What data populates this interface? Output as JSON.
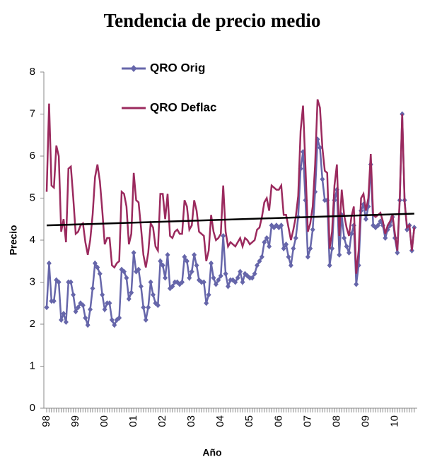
{
  "chart_data": {
    "type": "line",
    "title": "Tendencia de precio medio",
    "x_label": "Año",
    "y_label": "Precio",
    "categories": [
      "98",
      null,
      null,
      null,
      null,
      null,
      null,
      null,
      null,
      null,
      null,
      null,
      "99",
      null,
      null,
      null,
      null,
      null,
      null,
      null,
      null,
      null,
      null,
      null,
      "00",
      null,
      null,
      null,
      null,
      null,
      null,
      null,
      null,
      null,
      null,
      null,
      "01",
      null,
      null,
      null,
      null,
      null,
      null,
      null,
      null,
      null,
      null,
      null,
      "02",
      null,
      null,
      null,
      null,
      null,
      null,
      null,
      null,
      null,
      null,
      null,
      "03",
      null,
      null,
      null,
      null,
      null,
      null,
      null,
      null,
      null,
      null,
      null,
      "04",
      null,
      null,
      null,
      null,
      null,
      null,
      null,
      null,
      null,
      null,
      null,
      "05",
      null,
      null,
      null,
      null,
      null,
      null,
      null,
      null,
      null,
      null,
      null,
      "06",
      null,
      null,
      null,
      null,
      null,
      null,
      null,
      null,
      null,
      null,
      null,
      "07",
      null,
      null,
      null,
      null,
      null,
      null,
      null,
      null,
      null,
      null,
      null,
      "08",
      null,
      null,
      null,
      null,
      null,
      null,
      null,
      null,
      null,
      null,
      null,
      "09",
      null,
      null,
      null,
      null,
      null,
      null,
      null,
      null,
      null,
      null,
      null,
      "10",
      null,
      null,
      null,
      null,
      null,
      null,
      null,
      null
    ],
    "series": [
      {
        "name": "QRO Orig",
        "color": "#6666aa",
        "marker": "diamond",
        "values": [
          2.4,
          3.45,
          2.55,
          2.55,
          3.05,
          3.0,
          2.1,
          2.25,
          2.05,
          3.0,
          3.0,
          2.7,
          2.3,
          2.4,
          2.5,
          2.45,
          2.15,
          1.98,
          2.35,
          2.85,
          3.45,
          3.35,
          3.2,
          2.7,
          2.35,
          2.5,
          2.5,
          2.1,
          1.98,
          2.1,
          2.15,
          3.3,
          3.25,
          3.1,
          2.6,
          2.75,
          3.7,
          3.25,
          3.3,
          2.9,
          2.4,
          2.1,
          2.4,
          3.0,
          2.7,
          2.5,
          2.45,
          3.5,
          3.4,
          3.1,
          3.65,
          2.85,
          2.9,
          3.0,
          3.0,
          2.95,
          3.0,
          3.6,
          3.5,
          3.1,
          3.25,
          3.65,
          3.4,
          3.05,
          3.0,
          3.0,
          2.5,
          2.7,
          3.45,
          3.1,
          2.95,
          3.05,
          3.15,
          4.1,
          3.2,
          2.9,
          3.05,
          3.05,
          3.0,
          3.1,
          3.25,
          3.0,
          3.2,
          3.15,
          3.1,
          3.1,
          3.2,
          3.4,
          3.5,
          3.6,
          3.95,
          4.05,
          3.85,
          4.35,
          4.3,
          4.35,
          4.3,
          4.35,
          3.8,
          3.9,
          3.6,
          3.4,
          3.8,
          4.05,
          4.55,
          5.7,
          6.1,
          4.95,
          3.6,
          3.8,
          4.25,
          5.15,
          6.4,
          6.2,
          5.45,
          4.95,
          4.95,
          3.4,
          3.8,
          4.95,
          5.2,
          3.65,
          4.6,
          4.05,
          3.85,
          3.7,
          4.15,
          4.35,
          2.95,
          3.4,
          4.7,
          4.85,
          4.5,
          4.8,
          5.8,
          4.35,
          4.3,
          4.35,
          4.45,
          4.35,
          4.05,
          4.25,
          4.35,
          4.55,
          4.05,
          3.7,
          4.95,
          7.0,
          4.95,
          4.25,
          4.35,
          3.75,
          4.3
        ]
      },
      {
        "name": "QRO Deflac",
        "color": "#9b2a5e",
        "values": [
          5.15,
          7.25,
          5.3,
          5.25,
          6.25,
          6.0,
          4.2,
          4.5,
          3.95,
          5.7,
          5.75,
          5.0,
          4.15,
          4.2,
          4.35,
          4.4,
          3.95,
          3.65,
          4.0,
          4.6,
          5.5,
          5.8,
          5.4,
          4.7,
          3.9,
          4.05,
          4.05,
          3.4,
          3.35,
          3.45,
          3.5,
          5.15,
          5.1,
          4.8,
          3.9,
          4.15,
          5.6,
          4.95,
          4.9,
          4.3,
          3.65,
          3.35,
          3.7,
          4.4,
          4.3,
          3.85,
          3.75,
          5.1,
          5.1,
          4.5,
          5.1,
          4.1,
          4.05,
          4.2,
          4.25,
          4.15,
          4.15,
          4.95,
          4.8,
          4.25,
          4.35,
          4.95,
          4.7,
          4.2,
          4.15,
          4.1,
          3.5,
          3.75,
          4.6,
          4.2,
          4.0,
          4.05,
          4.15,
          5.3,
          4.2,
          3.85,
          3.95,
          3.9,
          3.85,
          3.95,
          4.05,
          3.85,
          4.05,
          4.0,
          3.9,
          3.95,
          4.0,
          4.25,
          4.3,
          4.55,
          4.9,
          5.0,
          4.7,
          5.3,
          5.25,
          5.2,
          5.2,
          5.3,
          4.6,
          4.6,
          4.3,
          4.0,
          4.25,
          4.55,
          5.05,
          6.6,
          7.2,
          5.75,
          4.2,
          4.4,
          4.8,
          5.8,
          7.35,
          7.15,
          6.2,
          5.65,
          5.6,
          3.8,
          4.2,
          5.3,
          5.8,
          4.1,
          5.2,
          4.6,
          4.3,
          4.1,
          4.55,
          4.8,
          3.2,
          3.75,
          5.0,
          5.1,
          4.7,
          5.0,
          6.05,
          4.6,
          4.55,
          4.6,
          4.65,
          4.45,
          4.15,
          4.35,
          4.45,
          4.6,
          4.15,
          3.75,
          5.0,
          7.0,
          4.9,
          4.3,
          4.35,
          3.75,
          4.3
        ]
      }
    ],
    "trend": {
      "color": "#000000",
      "values": [
        4.35,
        4.63
      ]
    },
    "ylim": [
      0,
      8
    ],
    "yticks": [
      0,
      1,
      2,
      3,
      4,
      5,
      6,
      7,
      8
    ]
  }
}
